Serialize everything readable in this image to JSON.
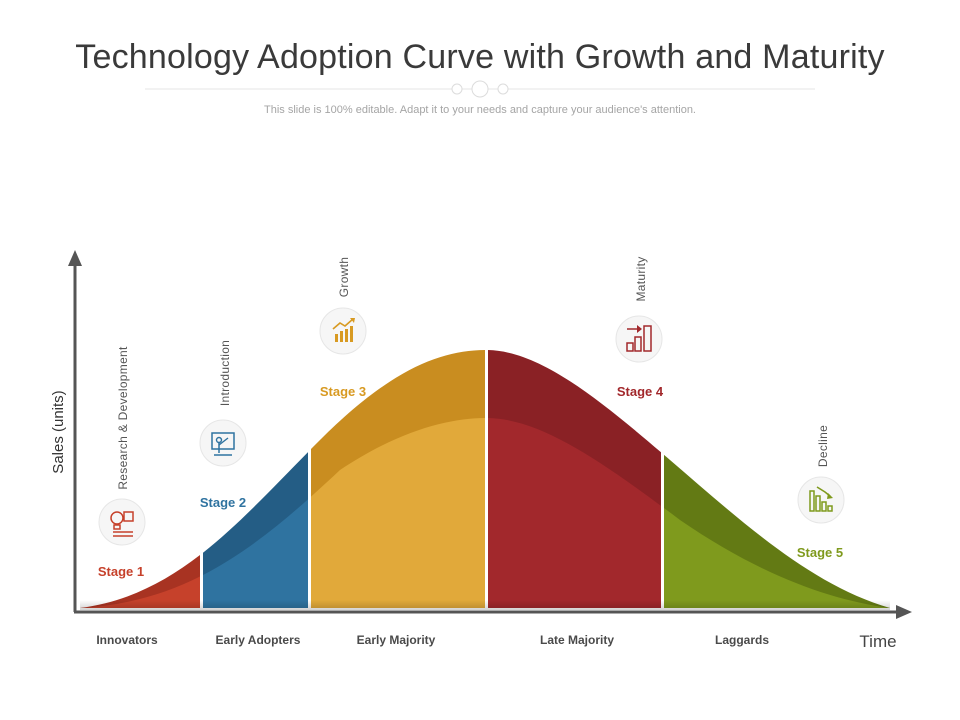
{
  "header": {
    "title": "Technology Adoption Curve with Growth and Maturity",
    "subtitle": "This slide is 100% editable. Adapt it to your needs and capture your audience's attention."
  },
  "axes": {
    "y_label": "Sales (units)",
    "x_label": "Time"
  },
  "stages": [
    {
      "stage_label": "Stage 1",
      "phase": "Research & Development",
      "icon": "lightbulb-gear-icon",
      "color": "#c6412b",
      "dark": "#a83322",
      "audience": "Innovators"
    },
    {
      "stage_label": "Stage 2",
      "phase": "Introduction",
      "icon": "presentation-board-icon",
      "color": "#2f73a0",
      "dark": "#245d85",
      "audience": "Early Adopters"
    },
    {
      "stage_label": "Stage 3",
      "phase": "Growth",
      "icon": "growth-chart-icon",
      "color": "#e1a93a",
      "dark": "#c98d20",
      "audience": "Early Majority"
    },
    {
      "stage_label": "Stage 4",
      "phase": "Maturity",
      "icon": "maturity-bars-icon",
      "color": "#a2282c",
      "dark": "#8a2125",
      "audience": "Late Majority"
    },
    {
      "stage_label": "Stage 5",
      "phase": "Decline",
      "icon": "decline-chart-icon",
      "color": "#7f9a1d",
      "dark": "#637a14",
      "audience": "Laggards"
    }
  ]
}
